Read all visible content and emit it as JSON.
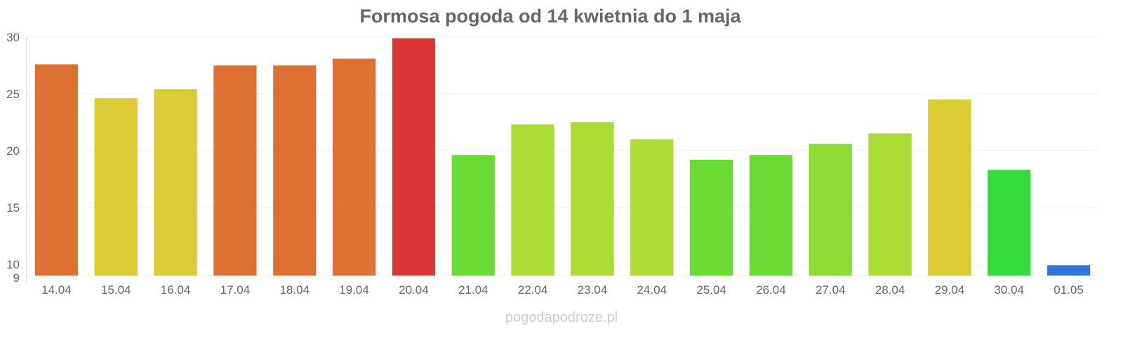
{
  "chart_data": {
    "type": "bar",
    "title": "Formosa pogoda od 14 kwietnia do 1 maja",
    "xlabel": "",
    "ylabel": "",
    "ylim": [
      9,
      30
    ],
    "yticks": [
      9,
      10,
      15,
      20,
      25,
      30
    ],
    "grid": true,
    "categories": [
      "14.04",
      "15.04",
      "16.04",
      "17.04",
      "18.04",
      "19.04",
      "20.04",
      "21.04",
      "22.04",
      "23.04",
      "24.04",
      "25.04",
      "26.04",
      "27.04",
      "28.04",
      "29.04",
      "30.04",
      "01.05"
    ],
    "values": [
      27.6,
      24.6,
      25.4,
      27.5,
      27.5,
      28.1,
      29.9,
      19.6,
      22.3,
      22.5,
      21.0,
      19.2,
      19.6,
      20.6,
      21.5,
      24.5,
      18.3,
      9.9
    ],
    "colors": [
      "#dd7033",
      "#dccb33",
      "#dccb33",
      "#dd7033",
      "#dd7033",
      "#dd7033",
      "#dc3535",
      "#6bdc33",
      "#acdc33",
      "#acdc33",
      "#acdc33",
      "#6bdc33",
      "#6bdc33",
      "#8cdc33",
      "#acdc33",
      "#dccb33",
      "#33dc3a",
      "#3375dc"
    ],
    "watermark": "pogodapodroze.pl"
  }
}
